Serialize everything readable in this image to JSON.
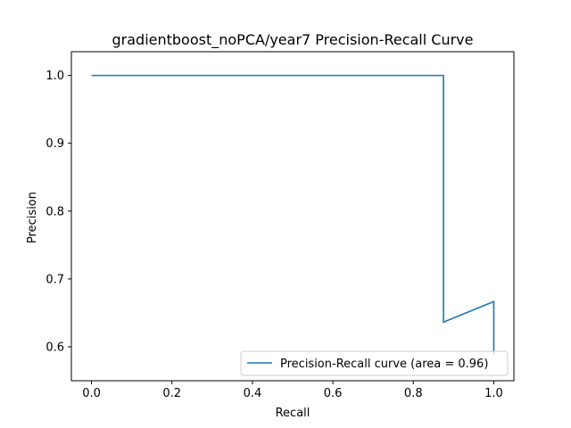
{
  "chart_data": {
    "type": "line",
    "title": "gradientboost_noPCA/year7 Precision-Recall Curve",
    "xlabel": "Recall",
    "ylabel": "Precision",
    "xlim": [
      -0.05,
      1.05
    ],
    "ylim": [
      0.55,
      1.035
    ],
    "xticks": [
      0.0,
      0.2,
      0.4,
      0.6,
      0.8,
      1.0
    ],
    "xtick_labels": [
      "0.0",
      "0.2",
      "0.4",
      "0.6",
      "0.8",
      "1.0"
    ],
    "yticks": [
      0.6,
      0.7,
      0.8,
      0.9,
      1.0
    ],
    "ytick_labels": [
      "0.6",
      "0.7",
      "0.8",
      "0.9",
      "1.0"
    ],
    "grid": false,
    "legend_position": "lower-right",
    "series": [
      {
        "name": "Precision-Recall curve (area = 0.96)",
        "color": "#1f77b4",
        "x": [
          0.0,
          0.875,
          0.875,
          1.0,
          1.0
        ],
        "y": [
          1.0,
          1.0,
          0.6364,
          0.6667,
          0.5882
        ]
      }
    ]
  }
}
